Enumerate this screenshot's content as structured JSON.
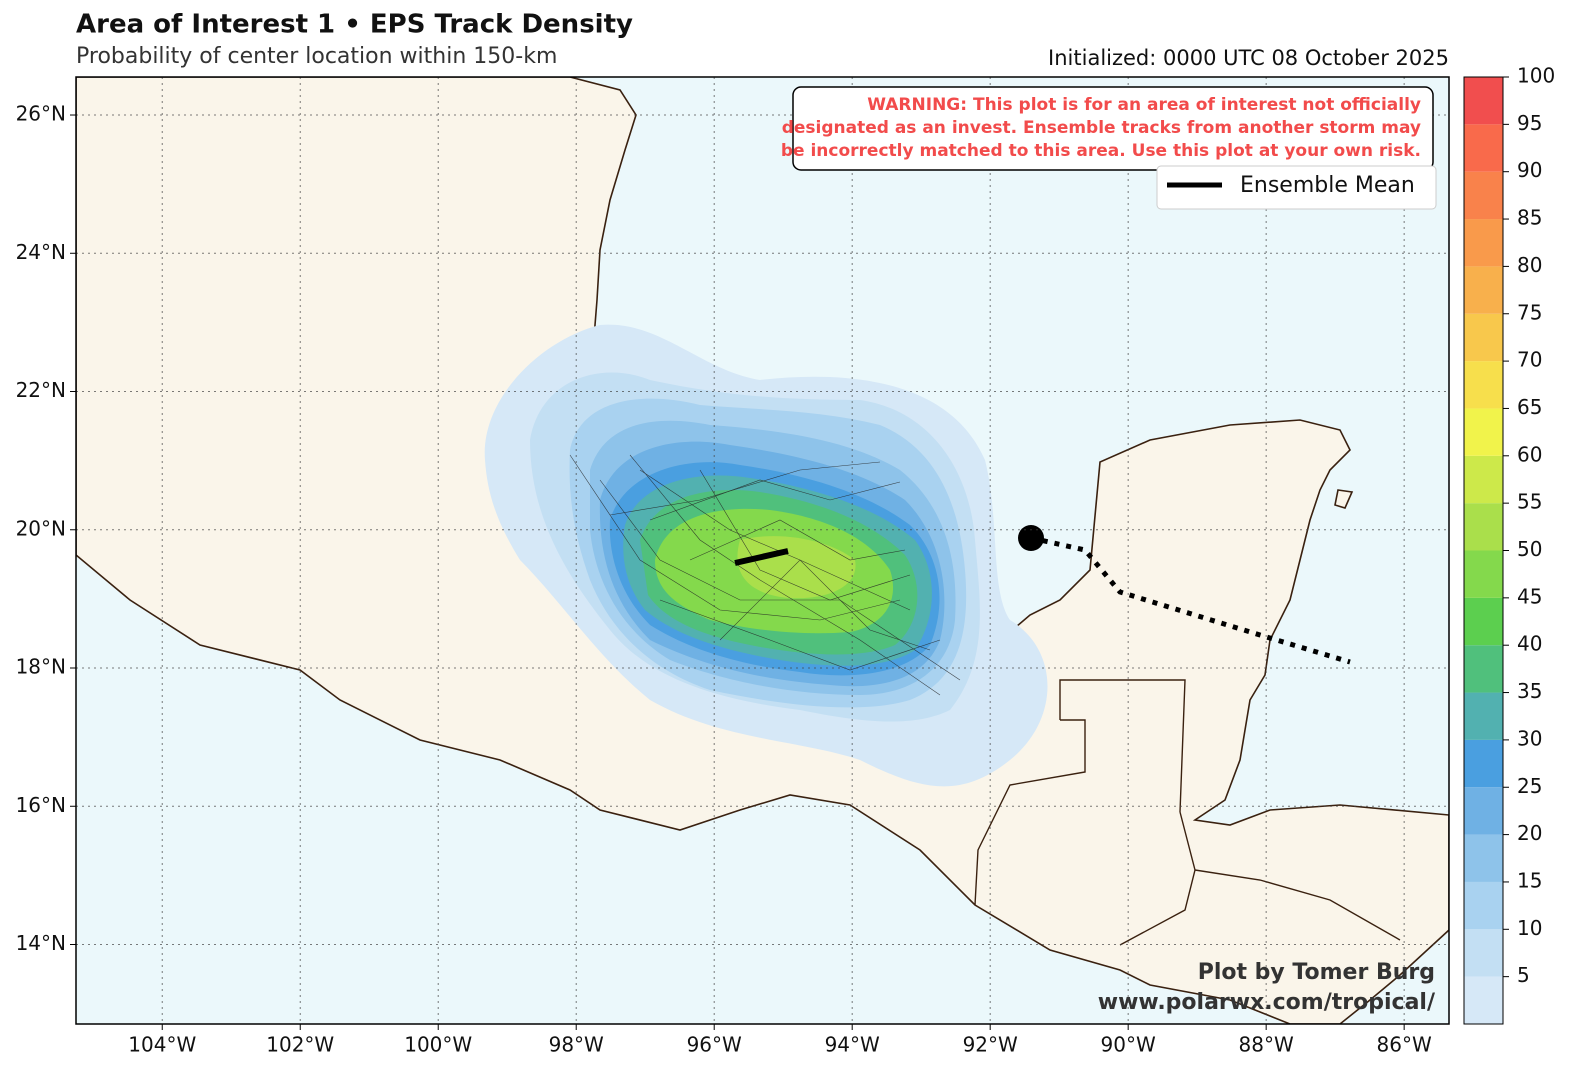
{
  "header": {
    "title": "Area of Interest 1 • EPS Track Density",
    "subtitle": "Probability of center location within 150-km",
    "initialized": "Initialized: 0000 UTC 08 October 2025"
  },
  "map": {
    "xlim": [
      -105.25,
      -85.35
    ],
    "ylim": [
      12.85,
      26.55
    ],
    "xticks": [
      {
        "value": -104,
        "label": "104°W"
      },
      {
        "value": -102,
        "label": "102°W"
      },
      {
        "value": -100,
        "label": "100°W"
      },
      {
        "value": -98,
        "label": "98°W"
      },
      {
        "value": -96,
        "label": "96°W"
      },
      {
        "value": -94,
        "label": "94°W"
      },
      {
        "value": -92,
        "label": "92°W"
      },
      {
        "value": -90,
        "label": "90°W"
      },
      {
        "value": -88,
        "label": "88°W"
      },
      {
        "value": -86,
        "label": "86°W"
      }
    ],
    "yticks": [
      {
        "value": 14,
        "label": "14°N"
      },
      {
        "value": 16,
        "label": "16°N"
      },
      {
        "value": 18,
        "label": "18°N"
      },
      {
        "value": 20,
        "label": "20°N"
      },
      {
        "value": 22,
        "label": "22°N"
      },
      {
        "value": 24,
        "label": "24°N"
      },
      {
        "value": 26,
        "label": "26°N"
      }
    ],
    "grid": true
  },
  "warning": [
    "WARNING: This plot is for an area of interest not officially",
    "designated as an invest. Ensemble tracks from another storm may",
    "be incorrectly matched to this area. Use this plot at your own risk."
  ],
  "legend": {
    "label": "Ensemble Mean"
  },
  "colorbar": {
    "bounds": [
      0,
      5,
      10,
      15,
      20,
      25,
      30,
      35,
      40,
      45,
      50,
      55,
      60,
      65,
      70,
      75,
      80,
      85,
      90,
      95,
      100
    ],
    "colors": [
      "#d6e8f7",
      "#c3dff3",
      "#a9d2f0",
      "#8ec3ea",
      "#6fb1e4",
      "#4a9fe0",
      "#52b1b0",
      "#50c07c",
      "#5ccf4f",
      "#84d94c",
      "#aadf4b",
      "#cde94a",
      "#f1f34b",
      "#f7df4c",
      "#f8c84c",
      "#f8b04c",
      "#f99a4b",
      "#f9824b",
      "#f96a4b",
      "#f14e4e"
    ],
    "ticks": [
      5,
      10,
      15,
      20,
      25,
      30,
      35,
      40,
      45,
      50,
      55,
      60,
      65,
      70,
      75,
      80,
      85,
      90,
      95,
      100
    ]
  },
  "credit": [
    "Plot by Tomer Burg",
    "www.polarwx.com/tropical/"
  ]
}
